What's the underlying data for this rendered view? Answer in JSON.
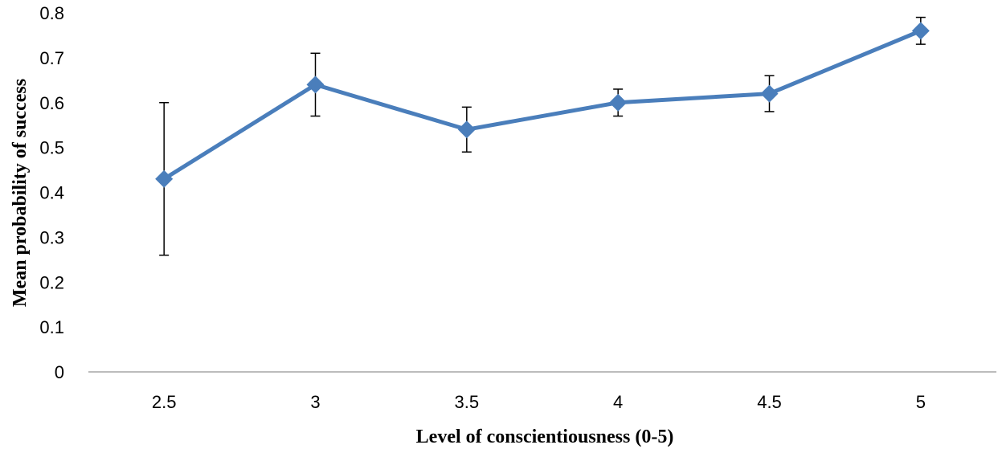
{
  "chart_data": {
    "type": "line",
    "title": "",
    "xlabel": "Level of conscientiousness (0-5)",
    "ylabel": "Mean probability of success",
    "categories": [
      "2.5",
      "3",
      "3.5",
      "4",
      "4.5",
      "5"
    ],
    "ylim": [
      0,
      0.8
    ],
    "yticks": [
      "0",
      "0.1",
      "0.2",
      "0.3",
      "0.4",
      "0.5",
      "0.6",
      "0.7",
      "0.8"
    ],
    "grid": false,
    "legend": "none",
    "series": [
      {
        "values": [
          0.43,
          0.64,
          0.54,
          0.6,
          0.62,
          0.76
        ],
        "error_low": [
          0.26,
          0.57,
          0.49,
          0.57,
          0.58,
          0.73
        ],
        "error_high": [
          0.6,
          0.71,
          0.59,
          0.63,
          0.66,
          0.79
        ],
        "color": "#4a7ebb",
        "marker": "diamond"
      }
    ]
  }
}
